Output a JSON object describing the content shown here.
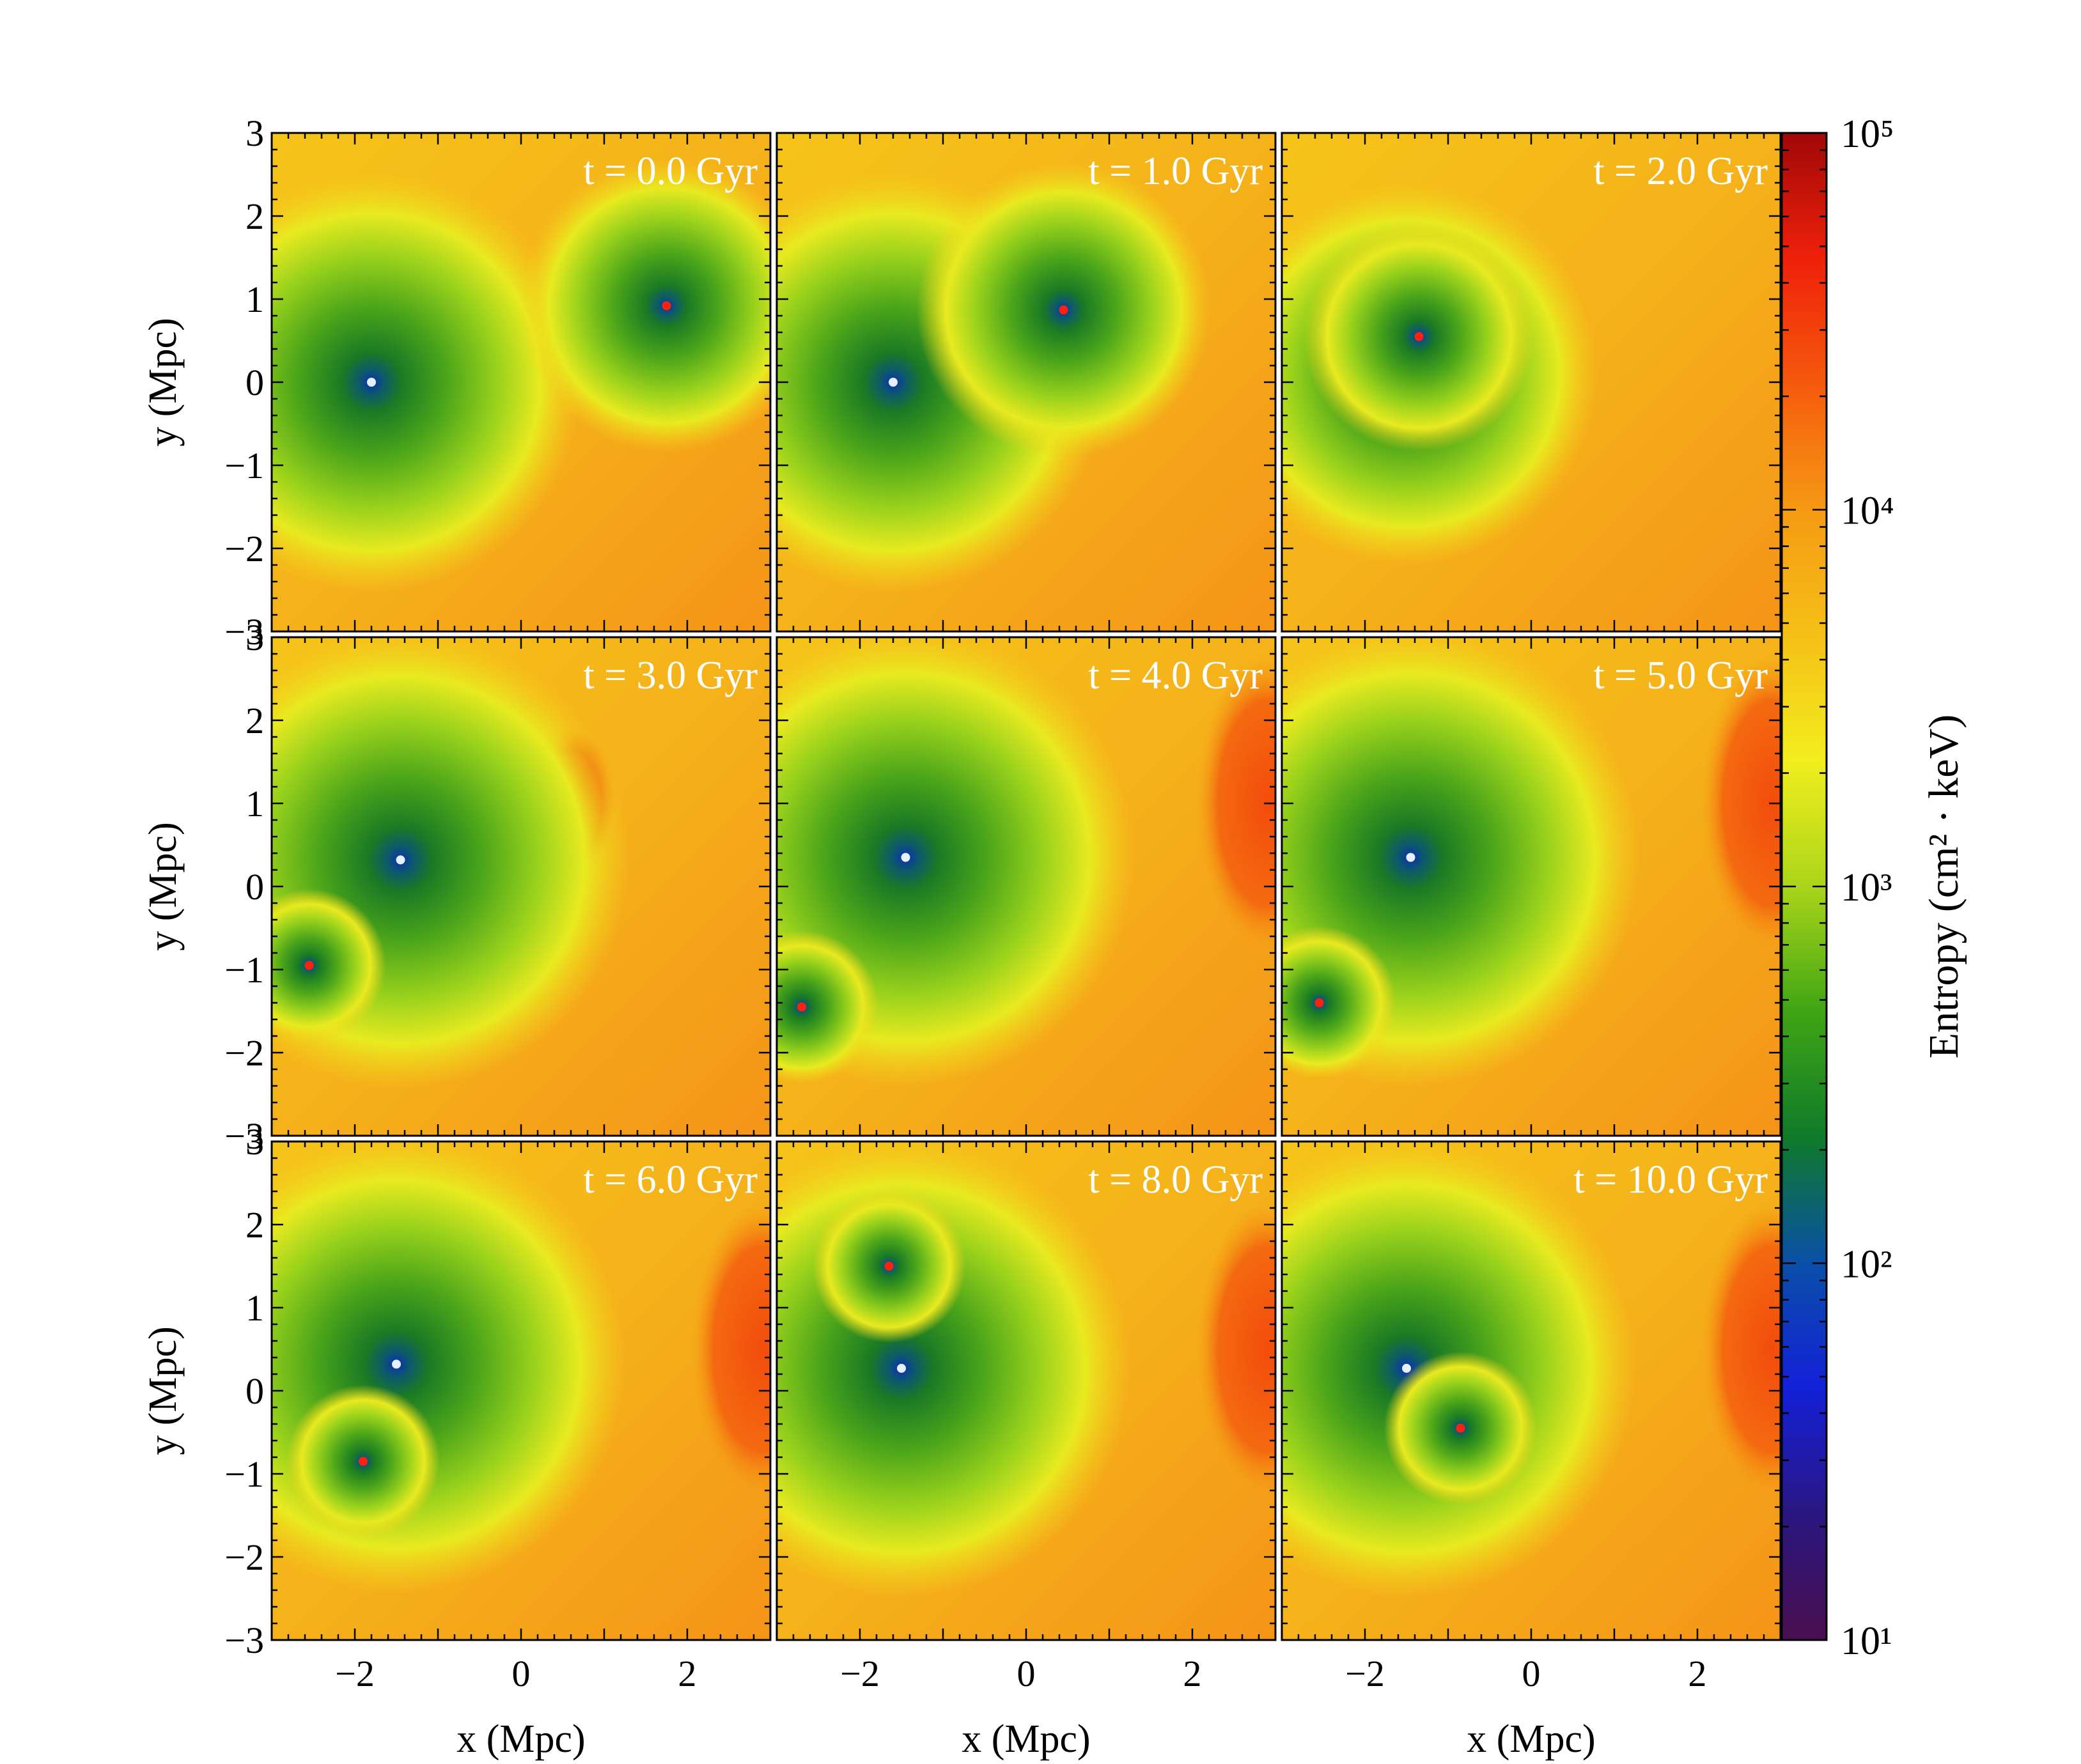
{
  "figure": {
    "x_label": "x  (Mpc)",
    "y_label": "y  (Mpc)",
    "colorbar_label": "Entropy  (cm² · keV)"
  },
  "chart_data": {
    "type": "heatmap",
    "layout": "3x3 panel grid, shared axes",
    "quantity": "Entropy",
    "xlabel": "x  (Mpc)",
    "ylabel": "y  (Mpc)",
    "xlim": [
      -3,
      3
    ],
    "ylim": [
      -3,
      3
    ],
    "x_ticks": [
      -2,
      0,
      2
    ],
    "y_ticks": [
      3,
      2,
      1,
      0,
      -1,
      -2,
      -3
    ],
    "colorbar": {
      "label": "Entropy  (cm² · keV)",
      "scale": "log",
      "range": [
        10,
        100000
      ],
      "tick_labels": [
        "10⁵",
        "10⁴",
        "10³",
        "10²",
        "10¹"
      ],
      "tick_values": [
        100000,
        10000,
        1000,
        100,
        10
      ],
      "colormap_stops": [
        "#4a0f4f",
        "#2a1780",
        "#1320d8",
        "#0a4fa8",
        "#0f7a2a",
        "#3fa514",
        "#aad51a",
        "#f2ee1e",
        "#f5c016",
        "#f59a14",
        "#f55a0c",
        "#ef200a",
        "#a00808"
      ]
    },
    "panels": [
      {
        "label": "t = 0.0 Gyr",
        "centers": [
          {
            "x": -1.8,
            "y": 0.0
          },
          {
            "x": 1.75,
            "y": 0.92
          }
        ]
      },
      {
        "label": "t = 1.0 Gyr",
        "centers": [
          {
            "x": -1.6,
            "y": 0.0
          },
          {
            "x": 0.45,
            "y": 0.87
          }
        ]
      },
      {
        "label": "t = 2.0 Gyr",
        "centers": [
          {
            "x": -1.5,
            "y": 0.1
          },
          {
            "x": -1.35,
            "y": 0.55
          }
        ]
      },
      {
        "label": "t = 3.0 Gyr",
        "centers": [
          {
            "x": -1.45,
            "y": 0.32
          },
          {
            "x": -2.55,
            "y": -0.95
          }
        ]
      },
      {
        "label": "t = 4.0 Gyr",
        "centers": [
          {
            "x": -1.45,
            "y": 0.35
          },
          {
            "x": -2.7,
            "y": -1.45
          }
        ]
      },
      {
        "label": "t = 5.0 Gyr",
        "centers": [
          {
            "x": -1.45,
            "y": 0.35
          },
          {
            "x": -2.55,
            "y": -1.4
          }
        ]
      },
      {
        "label": "t = 6.0 Gyr",
        "centers": [
          {
            "x": -1.5,
            "y": 0.32
          },
          {
            "x": -1.9,
            "y": -0.85
          }
        ]
      },
      {
        "label": "t = 8.0 Gyr",
        "centers": [
          {
            "x": -1.5,
            "y": 0.27
          },
          {
            "x": -1.65,
            "y": 1.5
          }
        ]
      },
      {
        "label": "t = 10.0 Gyr",
        "centers": [
          {
            "x": -1.5,
            "y": 0.27
          },
          {
            "x": -0.85,
            "y": -0.45
          }
        ]
      }
    ]
  }
}
